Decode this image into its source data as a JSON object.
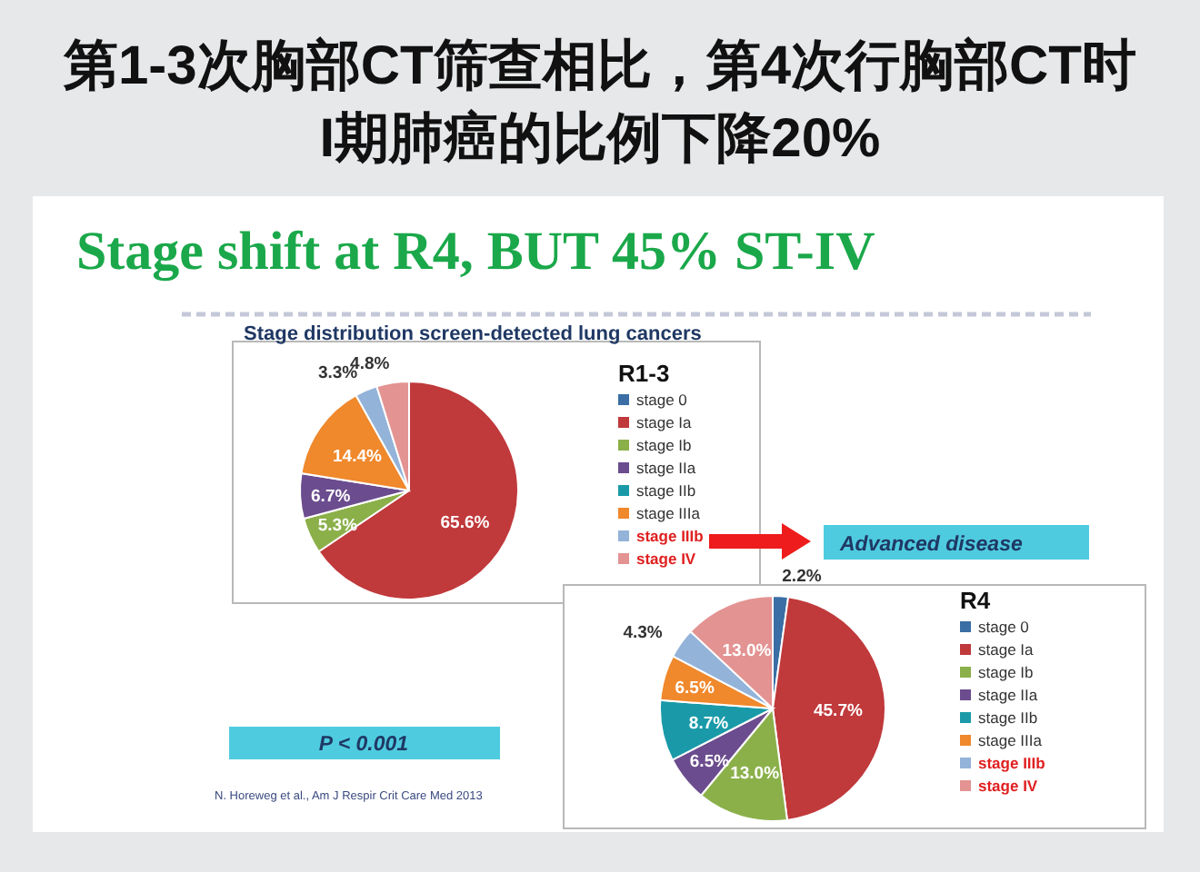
{
  "chart_data": [
    {
      "type": "pie",
      "title": "第1-3次胸部CT筛查相比，第4次行胸部CT时 I期肺癌的比例下降20%",
      "subtitle": "Stage shift at R4, BUT 45% ST-IV",
      "legend_title": "R1-3",
      "legend": "right",
      "annotations": [
        "Stage distribution screen-detected lung cancers",
        "Advanced disease",
        "P < 0.001",
        "N. Horeweg et al., Am J Respir Crit Care Med 2013"
      ],
      "categories": [
        "stage 0",
        "stage Ia",
        "stage Ib",
        "stage IIa",
        "stage IIb",
        "stage IIIa",
        "stage IIIb",
        "stage IV"
      ],
      "values": [
        0,
        65.6,
        5.3,
        6.7,
        0,
        14.4,
        3.3,
        4.8
      ],
      "value_labels": [
        null,
        "65.6%",
        "5.3%",
        "6.7%",
        null,
        "14.4%",
        "3.3%",
        "4.8%"
      ],
      "colors": [
        "#3a6ea5",
        "#c0393b",
        "#8bb04a",
        "#6b4c8e",
        "#1a9aa8",
        "#f0882c",
        "#93b3d9",
        "#e39392"
      ]
    },
    {
      "type": "pie",
      "legend_title": "R4",
      "legend": "right",
      "categories": [
        "stage 0",
        "stage Ia",
        "stage Ib",
        "stage IIa",
        "stage IIb",
        "stage IIIa",
        "stage IIIb",
        "stage IV"
      ],
      "values": [
        2.2,
        45.7,
        13.0,
        6.5,
        8.7,
        6.5,
        4.3,
        13.0
      ],
      "value_labels": [
        "2.2%",
        "45.7%",
        "13.0%",
        "6.5%",
        "8.7%",
        "6.5%",
        "4.3%",
        "13.0%"
      ],
      "colors": [
        "#3a6ea5",
        "#c0393b",
        "#8bb04a",
        "#6b4c8e",
        "#1a9aa8",
        "#f0882c",
        "#93b3d9",
        "#e39392"
      ]
    }
  ]
}
